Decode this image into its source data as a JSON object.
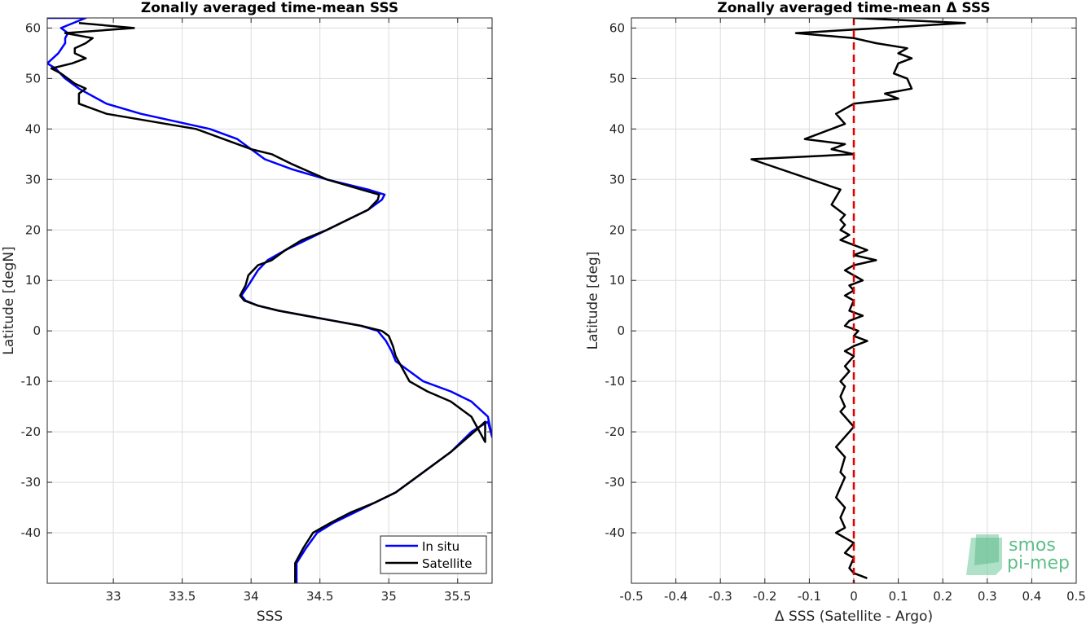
{
  "chart_data": [
    {
      "type": "line",
      "title": "Zonally averaged time-mean SSS",
      "xlabel": "SSS",
      "ylabel": "Latitude [degN]",
      "xlim": [
        32.52,
        35.75
      ],
      "ylim": [
        -50,
        62
      ],
      "xticks": [
        33,
        33.5,
        34,
        34.5,
        35,
        35.5
      ],
      "xtick_labels": [
        "33",
        "33.5",
        "34",
        "34.5",
        "35",
        "35.5"
      ],
      "yticks": [
        -40,
        -30,
        -20,
        -10,
        0,
        10,
        20,
        30,
        40,
        50,
        60
      ],
      "ytick_labels": [
        "-40",
        "-30",
        "-20",
        "-10",
        "0",
        "10",
        "20",
        "30",
        "40",
        "50",
        "60"
      ],
      "grid": true,
      "legend_position": "bottom-right",
      "series": [
        {
          "name": "In situ",
          "color": "#0000ff",
          "x": [
            34.33,
            34.33,
            34.4,
            34.48,
            34.6,
            34.75,
            34.9,
            35.05,
            35.25,
            35.45,
            35.6,
            35.72,
            35.75,
            35.72,
            35.6,
            35.45,
            35.25,
            35.15,
            35.05,
            35.02,
            34.98,
            34.92,
            34.8,
            34.6,
            34.4,
            34.2,
            34.05,
            33.96,
            33.93,
            33.98,
            34.05,
            34.12,
            34.25,
            34.4,
            34.55,
            34.7,
            34.85,
            34.95,
            34.97,
            34.85,
            34.55,
            34.3,
            34.1,
            34.0,
            33.9,
            33.7,
            33.2,
            32.95,
            32.75,
            32.65,
            32.58,
            32.52,
            32.6,
            32.65,
            32.65,
            32.67,
            32.62,
            32.8,
            32.52
          ],
          "y": [
            -50,
            -46,
            -43,
            -40,
            -38,
            -36,
            -34,
            -32,
            -28,
            -24,
            -20,
            -18,
            -21,
            -17,
            -14,
            -12,
            -10,
            -8,
            -6,
            -4,
            -2,
            0,
            1,
            2,
            3,
            4,
            5,
            6,
            7,
            9,
            12,
            14,
            16,
            18,
            20,
            22,
            24,
            26,
            27,
            28,
            30,
            32,
            34,
            36,
            38,
            40,
            43,
            45,
            48,
            50,
            52,
            53,
            55,
            57,
            58,
            59,
            60,
            62,
            62
          ]
        },
        {
          "name": "Satellite",
          "color": "#000000",
          "x": [
            34.32,
            34.32,
            34.38,
            34.45,
            34.58,
            34.72,
            34.9,
            35.05,
            35.25,
            35.45,
            35.62,
            35.7,
            35.7,
            35.6,
            35.45,
            35.28,
            35.15,
            35.05,
            35.03,
            35.0,
            34.95,
            34.8,
            34.6,
            34.4,
            34.2,
            34.05,
            33.95,
            33.92,
            33.96,
            33.98,
            34.05,
            34.15,
            34.25,
            34.37,
            34.55,
            34.7,
            34.85,
            34.92,
            34.93,
            34.8,
            34.55,
            34.3,
            34.15,
            34.0,
            33.8,
            33.6,
            32.95,
            32.75,
            32.75,
            32.8,
            32.72,
            32.62,
            32.55,
            32.7,
            32.8,
            32.72,
            32.72,
            32.8,
            32.85,
            32.65,
            33.15,
            32.75
          ],
          "y": [
            -50,
            -46,
            -43,
            -40,
            -38,
            -36,
            -34,
            -32,
            -28,
            -24,
            -20,
            -18,
            -22,
            -17,
            -14,
            -12,
            -10,
            -5,
            -3,
            -1,
            0,
            1,
            2,
            3,
            4,
            5,
            6,
            7,
            9,
            11,
            13,
            14,
            16,
            18,
            20,
            22,
            24,
            26,
            27,
            28,
            30,
            33,
            35,
            36,
            38,
            40,
            43,
            45,
            47,
            48,
            49,
            51,
            52,
            53,
            54,
            55,
            56,
            57,
            58,
            59,
            60,
            61
          ]
        }
      ]
    },
    {
      "type": "line",
      "title": "Zonally averaged time-mean Δ SSS",
      "xlabel": "Δ SSS (Satellite - Argo)",
      "ylabel": "Latitude [deg]",
      "xlim": [
        -0.5,
        0.5
      ],
      "ylim": [
        -50,
        62
      ],
      "xticks": [
        -0.5,
        -0.4,
        -0.3,
        -0.2,
        -0.1,
        0,
        0.1,
        0.2,
        0.3,
        0.4,
        0.5
      ],
      "xtick_labels": [
        "-0.5",
        "-0.4",
        "-0.3",
        "-0.2",
        "-0.1",
        "0",
        "0.1",
        "0.2",
        "0.3",
        "0.4",
        "0.5"
      ],
      "yticks": [
        -40,
        -30,
        -20,
        -10,
        0,
        10,
        20,
        30,
        40,
        50,
        60
      ],
      "ytick_labels": [
        "-40",
        "-30",
        "-20",
        "-10",
        "0",
        "10",
        "20",
        "30",
        "40",
        "50",
        "60"
      ],
      "grid": true,
      "reference_line": {
        "x": 0,
        "color": "#e00000",
        "style": "dashed"
      },
      "series": [
        {
          "color": "#000000",
          "x": [
            0.03,
            0.0,
            -0.01,
            0.0,
            -0.02,
            0.0,
            -0.04,
            -0.02,
            -0.03,
            -0.02,
            -0.04,
            -0.03,
            -0.02,
            -0.03,
            -0.02,
            -0.04,
            -0.02,
            0.0,
            -0.02,
            -0.03,
            -0.02,
            -0.03,
            -0.02,
            -0.03,
            -0.02,
            -0.01,
            -0.02,
            0.0,
            -0.02,
            0.0,
            0.03,
            0.0,
            0.01,
            -0.02,
            -0.01,
            0.02,
            -0.01,
            0.0,
            -0.02,
            0.0,
            -0.01,
            0.02,
            0.0,
            -0.02,
            0.0,
            0.05,
            0.0,
            0.03,
            0.0,
            -0.03,
            -0.01,
            -0.03,
            -0.02,
            -0.03,
            -0.02,
            -0.05,
            -0.03,
            -0.23,
            0.0,
            -0.05,
            -0.02,
            -0.11,
            -0.05,
            -0.02,
            -0.04,
            0.0,
            0.1,
            0.07,
            0.13,
            0.12,
            0.09,
            0.1,
            0.13,
            0.1,
            0.12,
            0.05,
            0.0,
            -0.13,
            0.25,
            0.0
          ],
          "y": [
            -49,
            -48,
            -47,
            -45,
            -44,
            -42,
            -40,
            -39,
            -37,
            -35,
            -33,
            -31,
            -29,
            -28,
            -25,
            -23,
            -21,
            -19,
            -17,
            -16,
            -15,
            -13,
            -11,
            -10,
            -9,
            -8,
            -7,
            -5,
            -4,
            -3,
            -2,
            -1,
            0,
            1,
            2,
            3,
            4,
            6,
            7,
            8,
            9,
            10,
            11,
            12,
            13,
            14,
            15,
            16,
            17,
            18,
            19,
            20,
            21,
            22,
            23,
            25,
            28,
            34,
            35,
            36,
            37,
            38,
            40,
            41,
            43,
            45,
            46,
            47,
            48,
            50,
            51,
            53,
            54,
            55,
            56,
            57,
            58,
            59,
            61,
            62
          ]
        }
      ]
    }
  ],
  "legend": {
    "items": [
      "In situ",
      "Satellite"
    ]
  },
  "logo": {
    "line1": "smos",
    "line2": "pi-mep"
  }
}
